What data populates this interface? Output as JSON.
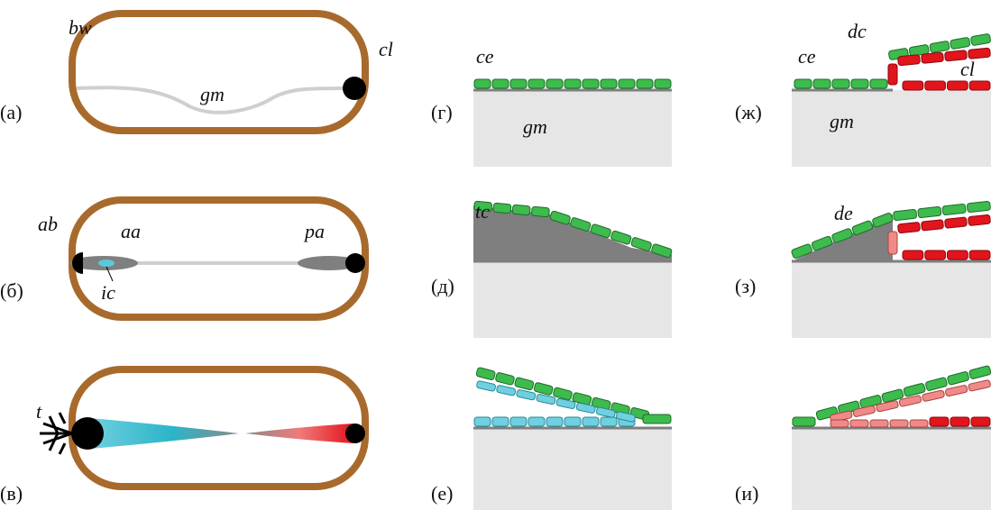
{
  "panels": [
    {
      "label": "(а)",
      "annotations": [
        "bw",
        "cl",
        "gm"
      ]
    },
    {
      "label": "(б)",
      "annotations": [
        "ab",
        "aa",
        "pa",
        "ic"
      ]
    },
    {
      "label": "(в)",
      "annotations": [
        "t"
      ]
    },
    {
      "label": "(г)",
      "annotations": [
        "ce",
        "gm"
      ]
    },
    {
      "label": "(д)",
      "annotations": [
        "tc"
      ]
    },
    {
      "label": "(е)",
      "annotations": []
    },
    {
      "label": "(ж)",
      "annotations": [
        "dc",
        "ce",
        "cl",
        "gm"
      ]
    },
    {
      "label": "(з)",
      "annotations": [
        "de"
      ]
    },
    {
      "label": "(и)",
      "annotations": []
    }
  ]
}
